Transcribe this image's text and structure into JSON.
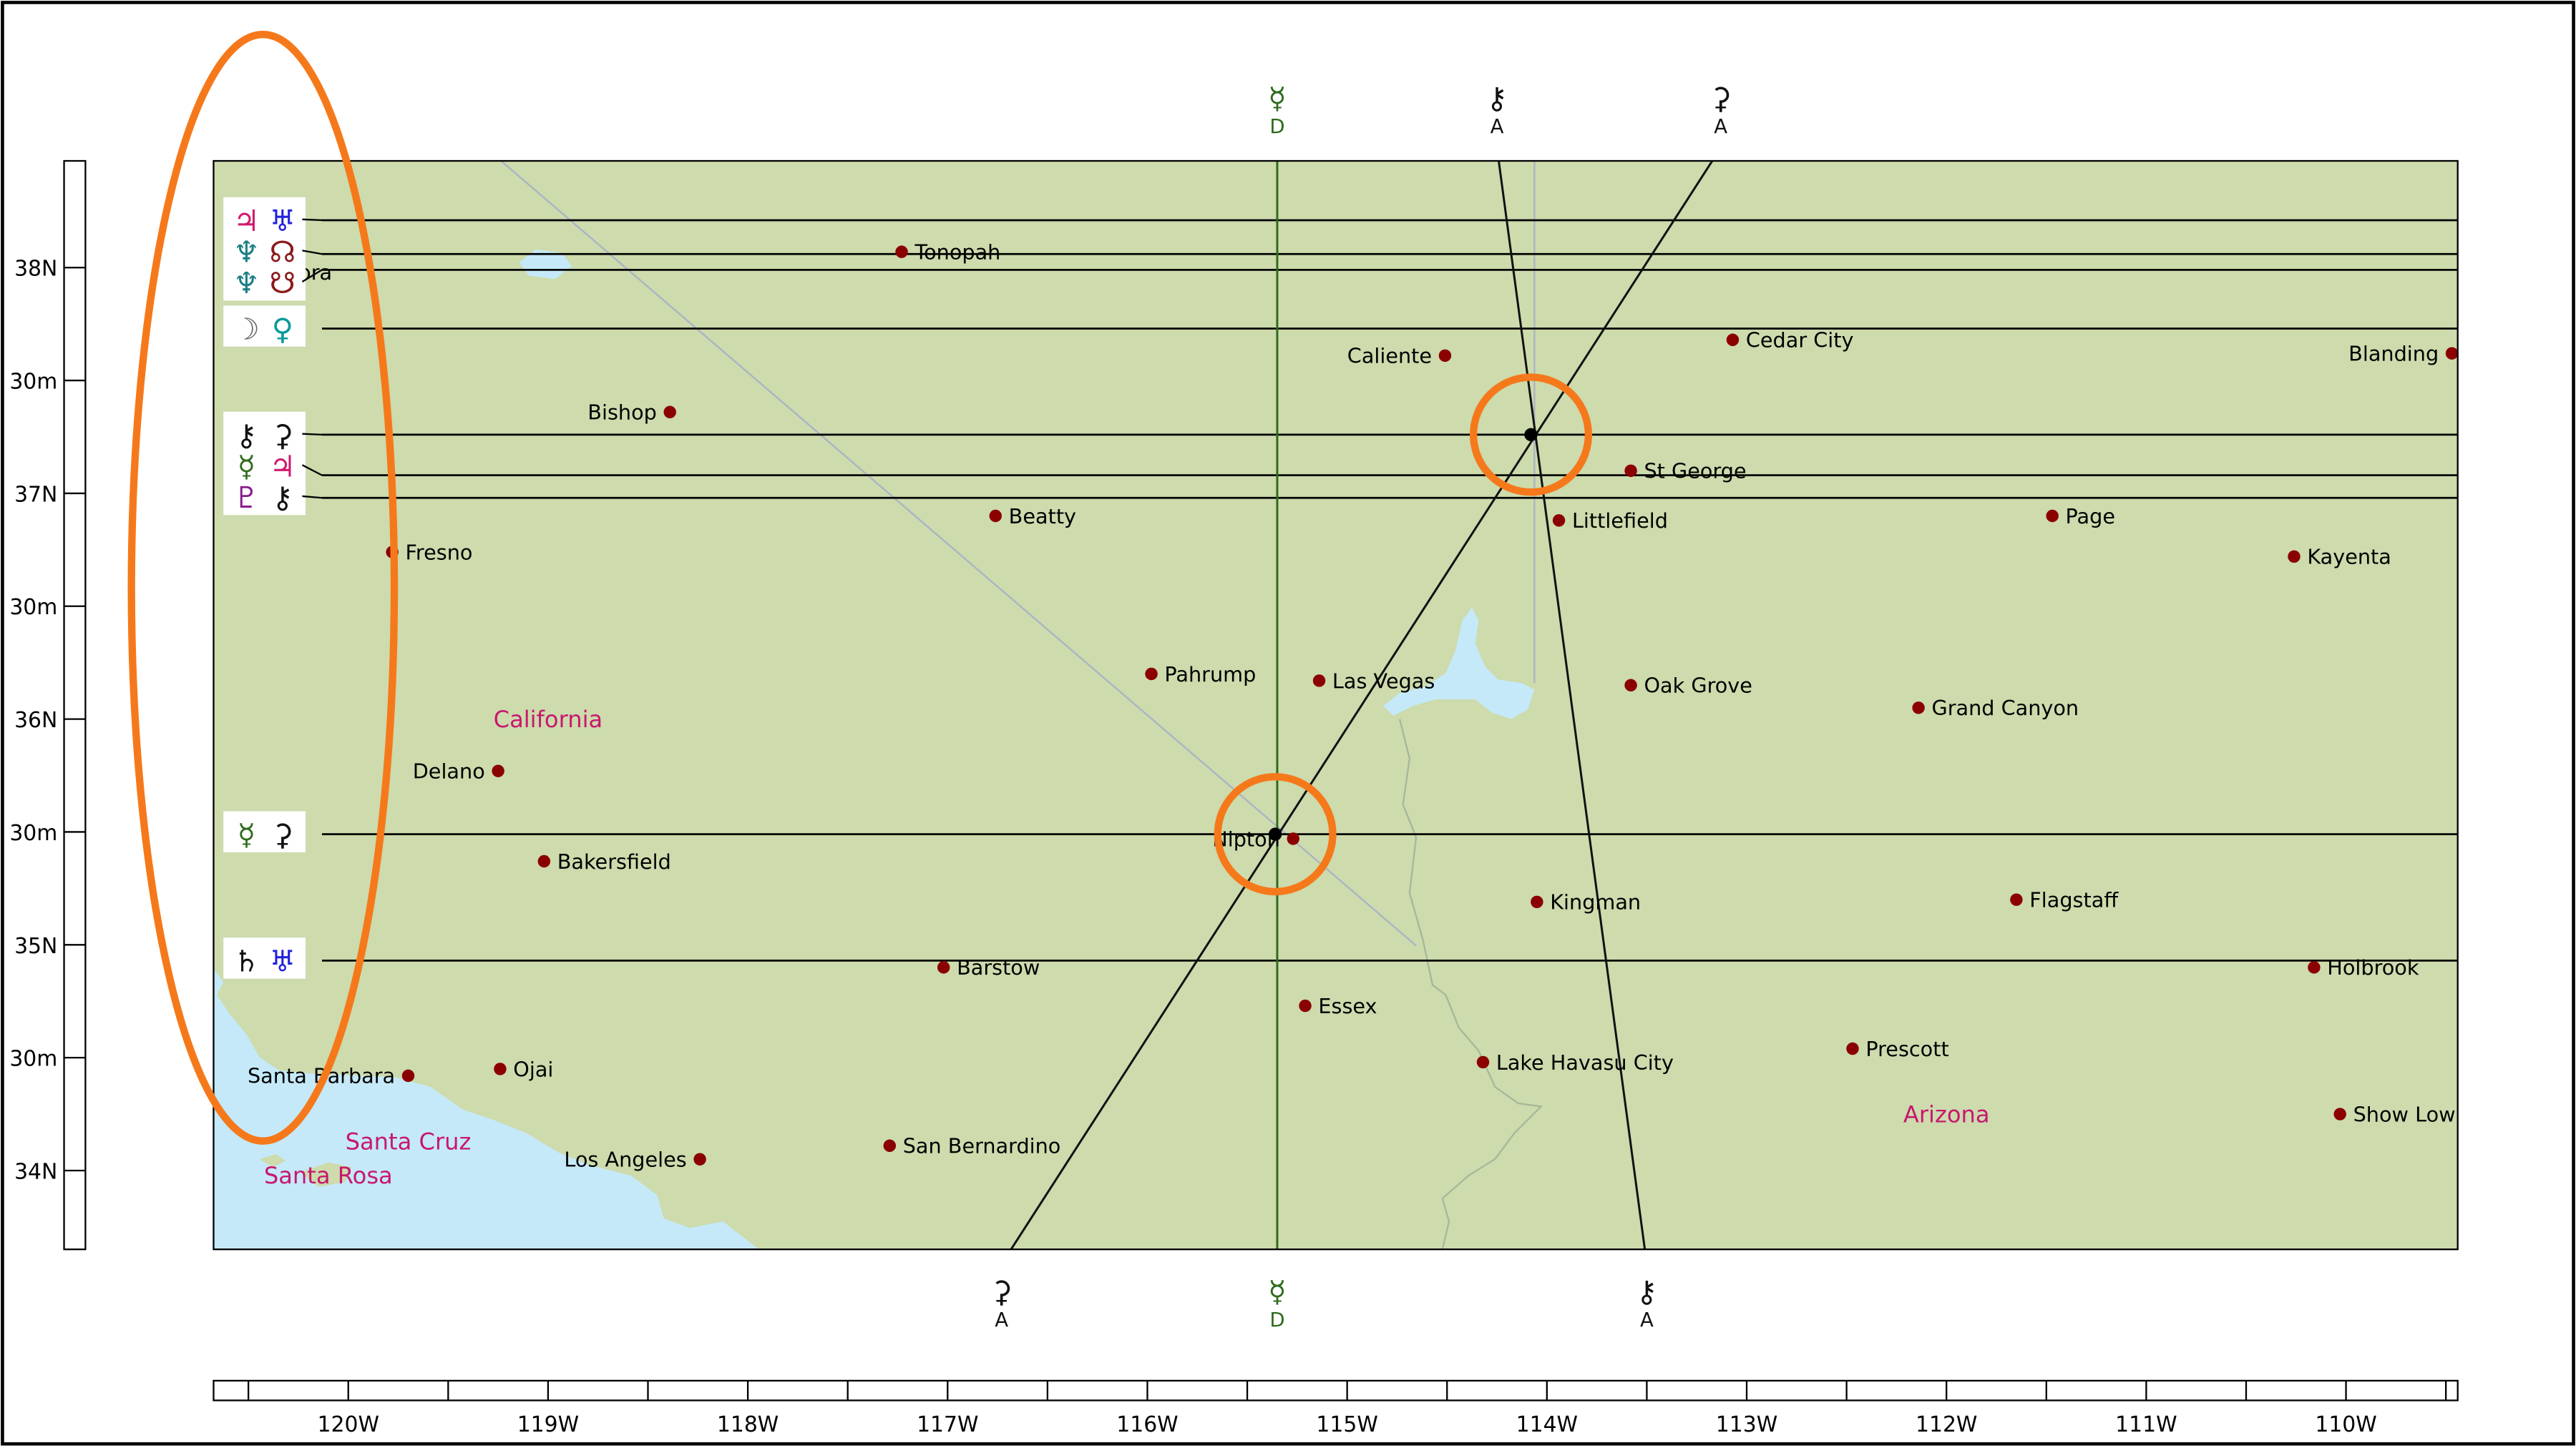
{
  "colors": {
    "land": "#cddbad",
    "water": "#c5e9f8",
    "city_dot": "#8b0000",
    "state_label": "#c8186e",
    "highlight": "#f5791b",
    "grid_line": "#000000",
    "mc_line": "#2e6b1c"
  },
  "lat_ticks": [
    "38N",
    "30m",
    "37N",
    "30m",
    "36N",
    "30m",
    "35N",
    "30m",
    "34N"
  ],
  "lon_ticks": [
    "120W",
    "119W",
    "118W",
    "117W",
    "116W",
    "115W",
    "114W",
    "113W",
    "112W",
    "111W",
    "110W"
  ],
  "cities": [
    {
      "name": "Tonopah",
      "lon": -117.23,
      "lat": 38.07
    },
    {
      "name": "Sonora",
      "lon": -120.38,
      "lat": 37.98,
      "text": "nora"
    },
    {
      "name": "Bishop",
      "lon": -118.39,
      "lat": 37.36
    },
    {
      "name": "Caliente",
      "lon": -114.51,
      "lat": 37.61
    },
    {
      "name": "Cedar City",
      "lon": -113.07,
      "lat": 37.68
    },
    {
      "name": "Blanding",
      "lon": -109.47,
      "lat": 37.62
    },
    {
      "name": "St George",
      "lon": -113.58,
      "lat": 37.1
    },
    {
      "name": "Littlefield",
      "lon": -113.94,
      "lat": 36.88
    },
    {
      "name": "Beatty",
      "lon": -116.76,
      "lat": 36.9
    },
    {
      "name": "Page",
      "lon": -111.47,
      "lat": 36.9
    },
    {
      "name": "Kayenta",
      "lon": -110.26,
      "lat": 36.72
    },
    {
      "name": "Fresno",
      "lon": -119.78,
      "lat": 36.74
    },
    {
      "name": "Pahrump",
      "lon": -115.98,
      "lat": 36.2
    },
    {
      "name": "Las Vegas",
      "lon": -115.14,
      "lat": 36.17
    },
    {
      "name": "Oak Grove",
      "lon": -113.58,
      "lat": 36.15
    },
    {
      "name": "Grand Canyon",
      "lon": -112.14,
      "lat": 36.05
    },
    {
      "name": "Delano",
      "lon": -119.25,
      "lat": 35.77
    },
    {
      "name": "Nipton",
      "lon": -115.27,
      "lat": 35.47
    },
    {
      "name": "Bakersfield",
      "lon": -119.02,
      "lat": 35.37
    },
    {
      "name": "Kingman",
      "lon": -114.05,
      "lat": 35.19
    },
    {
      "name": "Flagstaff",
      "lon": -111.65,
      "lat": 35.2
    },
    {
      "name": "Barstow",
      "lon": -117.02,
      "lat": 34.9
    },
    {
      "name": "Holbrook",
      "lon": -110.16,
      "lat": 34.9
    },
    {
      "name": "Essex",
      "lon": -115.21,
      "lat": 34.73
    },
    {
      "name": "Prescott",
      "lon": -112.47,
      "lat": 34.54
    },
    {
      "name": "Lake Havasu City",
      "lon": -114.32,
      "lat": 34.48
    },
    {
      "name": "Santa Barbara",
      "lon": -119.7,
      "lat": 34.42
    },
    {
      "name": "Ojai",
      "lon": -119.24,
      "lat": 34.45
    },
    {
      "name": "Show Low",
      "lon": -110.03,
      "lat": 34.25
    },
    {
      "name": "San Bernardino",
      "lon": -117.29,
      "lat": 34.11
    },
    {
      "name": "Los Angeles",
      "lon": -118.24,
      "lat": 34.05
    }
  ],
  "state_labels": [
    {
      "name": "California",
      "lon": -119.0,
      "lat": 36.0
    },
    {
      "name": "Arizona",
      "lon": -112.0,
      "lat": 34.25
    }
  ],
  "island_labels": [
    {
      "name": "Santa Cruz",
      "lon": -119.7,
      "lat": 34.13
    },
    {
      "name": "Santa Rosa",
      "lon": -120.1,
      "lat": 33.98
    }
  ],
  "parans": [
    {
      "lat": 38.21,
      "glyphs": [
        {
          "s": "♃",
          "c": "#d0196e"
        },
        {
          "s": "♅",
          "c": "#2222dd"
        }
      ]
    },
    {
      "lat": 38.06,
      "glyphs": [
        {
          "s": "♆",
          "c": "#1c7f86"
        },
        {
          "s": "☊",
          "c": "#8b1a1a"
        }
      ]
    },
    {
      "lat": 37.99,
      "glyphs": [
        {
          "s": "♆",
          "c": "#1c7f86"
        },
        {
          "s": "☋",
          "c": "#8b1a1a"
        }
      ]
    },
    {
      "lat": 37.73,
      "glyphs": [
        {
          "s": "☽",
          "c": "#666666"
        },
        {
          "s": "♀",
          "c": "#0a9a9a"
        }
      ]
    },
    {
      "lat": 37.26,
      "glyphs": [
        {
          "s": "⚷",
          "c": "#111111"
        },
        {
          "s": "⚳",
          "c": "#111111"
        }
      ]
    },
    {
      "lat": 37.08,
      "glyphs": [
        {
          "s": "☿",
          "c": "#2e6b1c"
        },
        {
          "s": "♃",
          "c": "#d0196e"
        }
      ]
    },
    {
      "lat": 36.98,
      "glyphs": [
        {
          "s": "♇",
          "c": "#8b1a8b"
        },
        {
          "s": "⚷",
          "c": "#111111"
        }
      ]
    },
    {
      "lat": 35.49,
      "glyphs": [
        {
          "s": "☿",
          "c": "#2e6b1c"
        },
        {
          "s": "⚳",
          "c": "#111111"
        }
      ]
    },
    {
      "lat": 34.93,
      "glyphs": [
        {
          "s": "♄",
          "c": "#111111"
        },
        {
          "s": "♅",
          "c": "#2222dd"
        }
      ]
    }
  ],
  "angle_lines": [
    {
      "glyph": "☿",
      "angle": "D",
      "color": "#2e6b1c",
      "lon_top": -115.35,
      "lon_bottom": -115.35
    },
    {
      "glyph": "⚷",
      "angle": "A",
      "color": "#111111",
      "lon_top": -114.25,
      "lon_bottom": -113.5
    },
    {
      "glyph": "⚳",
      "angle": "A",
      "color": "#111111",
      "lon_top": -113.13,
      "lon_bottom": -116.73
    }
  ],
  "crossings": [
    {
      "lon": -114.08,
      "lat": 37.26
    },
    {
      "lon": -115.36,
      "lat": 35.49
    }
  ]
}
